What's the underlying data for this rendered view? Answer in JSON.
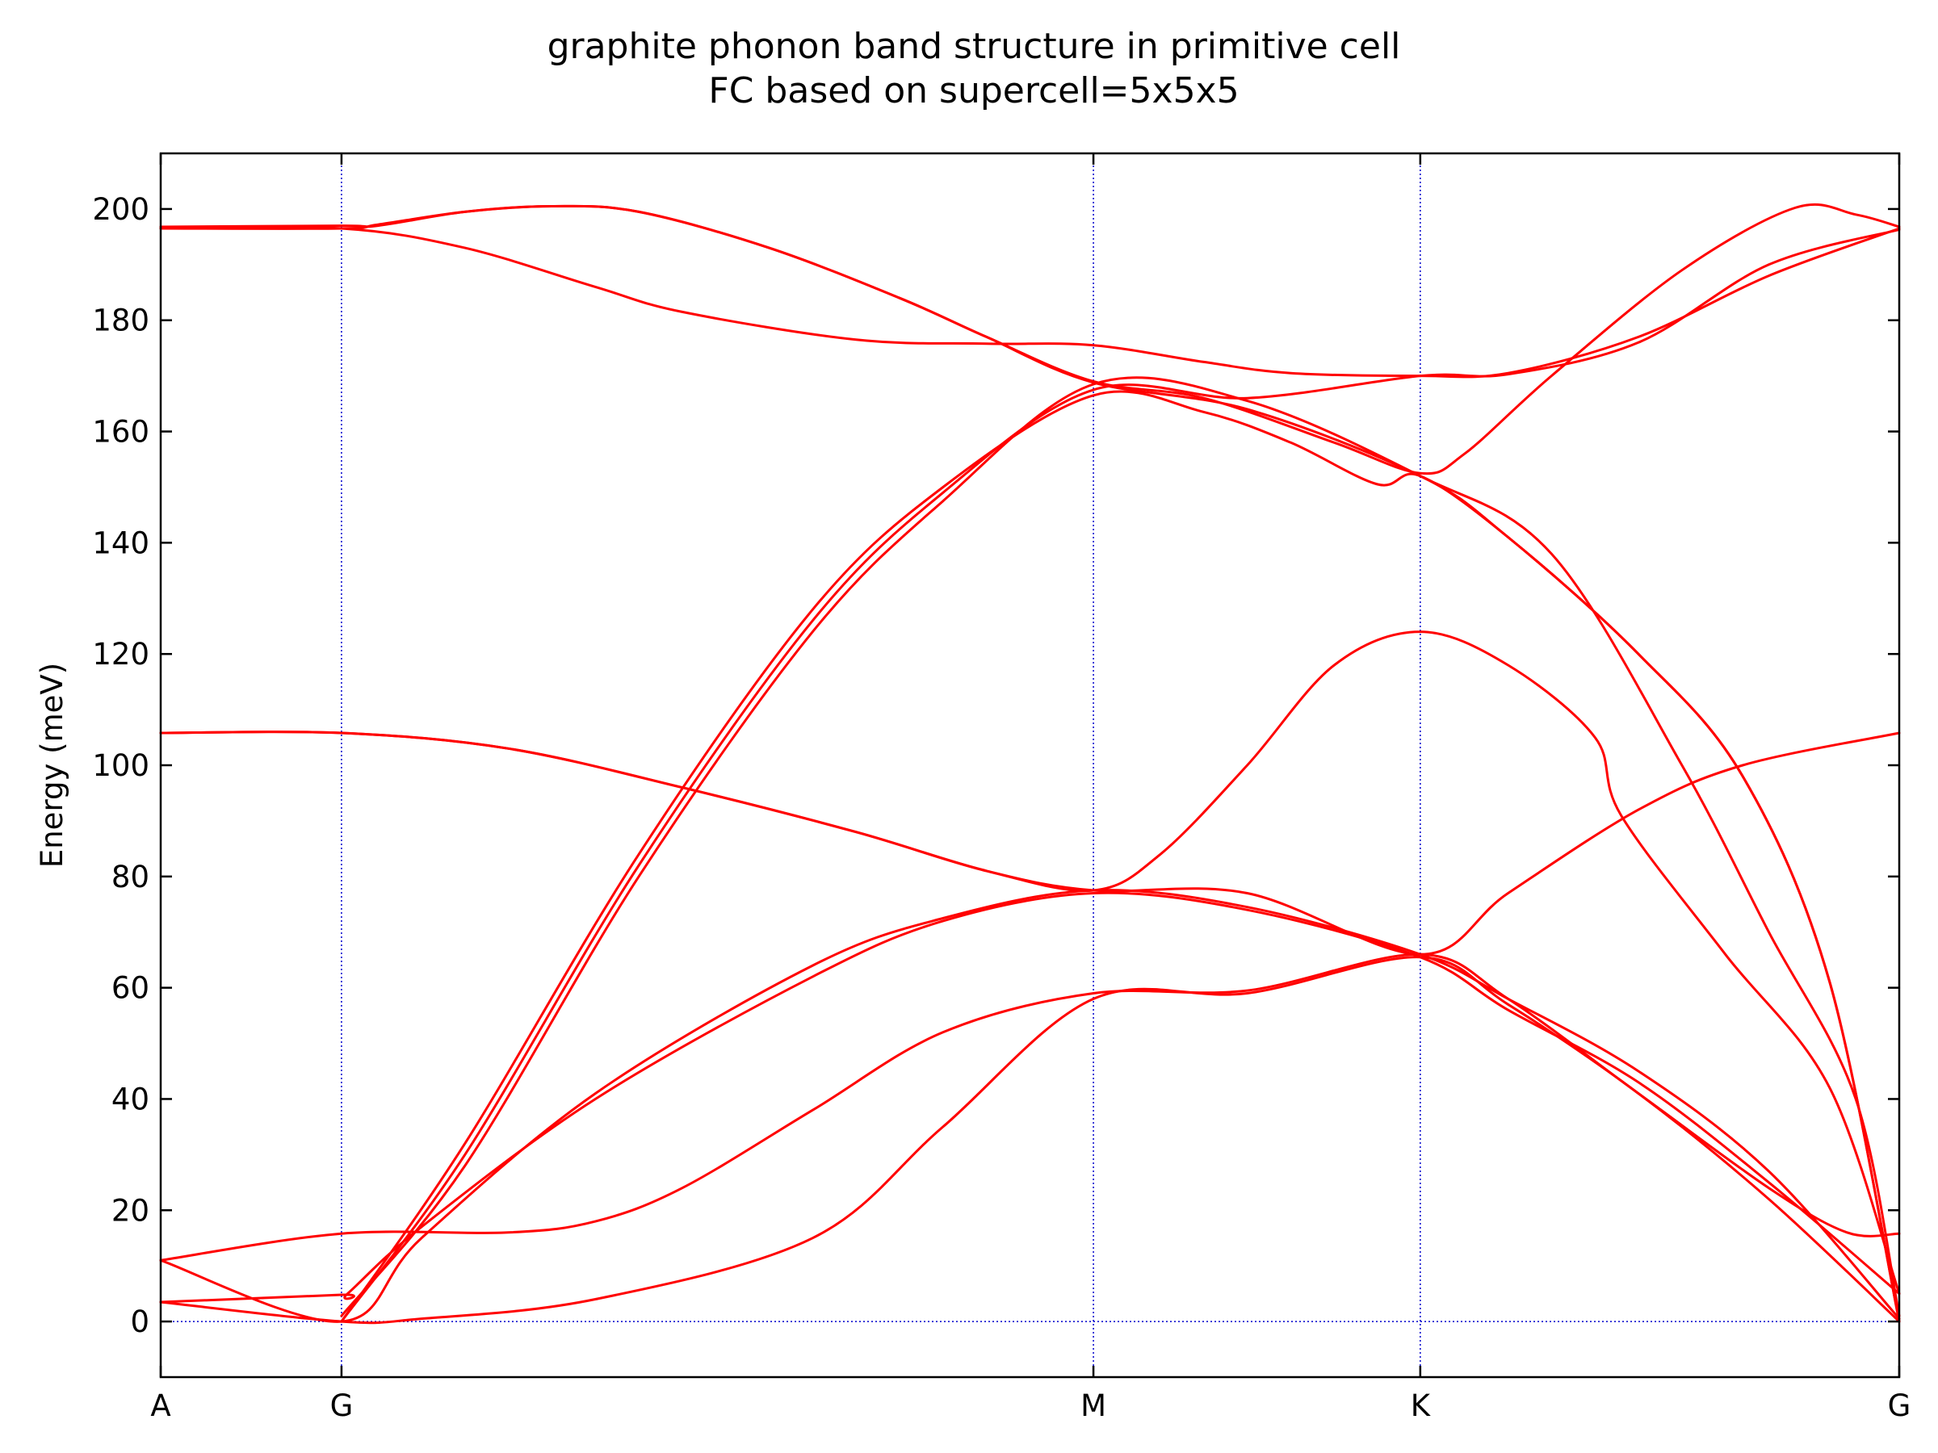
{
  "chart_data": {
    "type": "line",
    "title": "graphite phonon band structure in primitive cell",
    "subtitle": "FC based on supercell=5x5x5",
    "xlabel": "",
    "ylabel": "Energy (meV)",
    "ylim": [
      -10,
      210
    ],
    "yticks": [
      0,
      20,
      40,
      60,
      80,
      100,
      120,
      140,
      160,
      180,
      200
    ],
    "grid": "dotted vertical lines at high-symmetry points, dotted horizontal line at 0",
    "line_color": "#ff0000",
    "grid_color": "#0000cc",
    "x_high_symmetry": [
      {
        "label": "A",
        "x": 0.0
      },
      {
        "label": "G",
        "x": 0.208
      },
      {
        "label": "M",
        "x": 1.073
      },
      {
        "label": "K",
        "x": 1.449
      },
      {
        "label": "G",
        "x": 2.0
      }
    ],
    "series": [
      {
        "values": [
          [
            0.0,
            3.5
          ],
          [
            0.208,
            0.0
          ],
          [
            0.3,
            0.5
          ],
          [
            0.5,
            4.0
          ],
          [
            0.75,
            15.0
          ],
          [
            0.9,
            35.0
          ],
          [
            1.073,
            58.0
          ],
          [
            1.25,
            59.0
          ],
          [
            1.449,
            65.5
          ],
          [
            1.55,
            57.0
          ],
          [
            1.7,
            41.0
          ],
          [
            1.85,
            22.0
          ],
          [
            2.0,
            0.0
          ]
        ]
      },
      {
        "values": [
          [
            0.0,
            3.5
          ],
          [
            0.208,
            4.8
          ],
          [
            0.215,
            5.0
          ],
          [
            0.3,
            17.0
          ],
          [
            0.5,
            40.0
          ],
          [
            0.75,
            62.0
          ],
          [
            0.9,
            72.0
          ],
          [
            1.073,
            77.0
          ],
          [
            1.25,
            74.0
          ],
          [
            1.449,
            65.5
          ],
          [
            1.55,
            56.0
          ],
          [
            1.7,
            43.0
          ],
          [
            1.85,
            25.0
          ],
          [
            2.0,
            5.0
          ]
        ]
      },
      {
        "values": [
          [
            0.0,
            11.0
          ],
          [
            0.208,
            0.0
          ],
          [
            0.3,
            15.0
          ],
          [
            0.5,
            41.0
          ],
          [
            0.75,
            64.0
          ],
          [
            0.9,
            72.5
          ],
          [
            1.073,
            77.5
          ],
          [
            1.25,
            74.5
          ],
          [
            1.449,
            66.0
          ],
          [
            1.55,
            58.0
          ],
          [
            1.7,
            45.0
          ],
          [
            1.85,
            27.0
          ],
          [
            2.0,
            0.5
          ]
        ]
      },
      {
        "values": [
          [
            0.0,
            11.0
          ],
          [
            0.208,
            15.8
          ],
          [
            0.4,
            16.0
          ],
          [
            0.5,
            18.0
          ],
          [
            0.6,
            24.0
          ],
          [
            0.75,
            38.0
          ],
          [
            0.9,
            52.0
          ],
          [
            1.073,
            59.0
          ],
          [
            1.25,
            59.5
          ],
          [
            1.449,
            66.0
          ],
          [
            1.55,
            58.0
          ],
          [
            1.7,
            41.0
          ],
          [
            1.85,
            24.0
          ],
          [
            1.94,
            16.0
          ],
          [
            2.0,
            15.8
          ]
        ]
      },
      {
        "values": [
          [
            0.0,
            105.8
          ],
          [
            0.208,
            105.8
          ],
          [
            0.4,
            103.0
          ],
          [
            0.6,
            96.0
          ],
          [
            0.8,
            88.0
          ],
          [
            0.95,
            81.0
          ],
          [
            1.073,
            77.5
          ],
          [
            1.25,
            77.0
          ],
          [
            1.449,
            66.0
          ],
          [
            1.55,
            77.0
          ],
          [
            1.7,
            92.0
          ],
          [
            1.82,
            100.0
          ],
          [
            2.0,
            105.8
          ]
        ]
      },
      {
        "values": [
          [
            0.0,
            105.8
          ],
          [
            0.208,
            105.8
          ],
          [
            0.4,
            103.0
          ],
          [
            0.6,
            96.0
          ],
          [
            0.8,
            88.0
          ],
          [
            0.95,
            81.0
          ],
          [
            1.073,
            77.5
          ],
          [
            1.15,
            84.0
          ],
          [
            1.25,
            100.0
          ],
          [
            1.35,
            118.0
          ],
          [
            1.449,
            124.0
          ],
          [
            1.55,
            118.0
          ],
          [
            1.65,
            105.0
          ],
          [
            1.68,
            91.0
          ],
          [
            1.8,
            66.0
          ],
          [
            1.92,
            42.0
          ],
          [
            2.0,
            5.0
          ]
        ]
      },
      {
        "values": [
          [
            0.0,
            196.5
          ],
          [
            0.208,
            196.5
          ],
          [
            0.35,
            193.0
          ],
          [
            0.5,
            186.0
          ],
          [
            0.6,
            181.5
          ],
          [
            0.8,
            176.5
          ],
          [
            0.95,
            175.8
          ],
          [
            1.073,
            175.5
          ],
          [
            1.2,
            172.5
          ],
          [
            1.3,
            170.5
          ],
          [
            1.449,
            170.0
          ],
          [
            1.55,
            170.5
          ],
          [
            1.7,
            177.0
          ],
          [
            1.85,
            188.0
          ],
          [
            2.0,
            196.5
          ]
        ]
      },
      {
        "values": [
          [
            0.0,
            196.5
          ],
          [
            0.208,
            196.5
          ],
          [
            0.25,
            197.2
          ],
          [
            0.35,
            199.5
          ],
          [
            0.45,
            200.5
          ],
          [
            0.55,
            199.5
          ],
          [
            0.7,
            193.0
          ],
          [
            0.85,
            184.0
          ],
          [
            0.95,
            177.0
          ],
          [
            1.073,
            169.0
          ],
          [
            1.2,
            166.0
          ],
          [
            1.35,
            158.0
          ],
          [
            1.449,
            152.5
          ],
          [
            1.5,
            156.0
          ],
          [
            1.6,
            170.0
          ],
          [
            1.75,
            189.0
          ],
          [
            1.88,
            200.2
          ],
          [
            1.95,
            199.0
          ],
          [
            2.0,
            196.8
          ]
        ]
      },
      {
        "values": [
          [
            0.0,
            196.8
          ],
          [
            0.208,
            197.0
          ],
          [
            0.25,
            197.0
          ],
          [
            0.35,
            199.5
          ],
          [
            0.45,
            200.5
          ],
          [
            0.55,
            199.5
          ],
          [
            0.7,
            193.0
          ],
          [
            0.85,
            184.0
          ],
          [
            0.95,
            177.0
          ],
          [
            1.073,
            168.8
          ],
          [
            1.25,
            164.0
          ],
          [
            1.449,
            152.0
          ],
          [
            1.55,
            141.0
          ],
          [
            1.7,
            120.0
          ],
          [
            1.82,
            98.0
          ],
          [
            1.92,
            61.0
          ],
          [
            2.0,
            0.0
          ]
        ]
      },
      {
        "values": [
          [
            0.208,
            0.0
          ],
          [
            0.35,
            32.0
          ],
          [
            0.55,
            84.0
          ],
          [
            0.75,
            128.0
          ],
          [
            0.9,
            150.0
          ],
          [
            1.073,
            166.5
          ],
          [
            1.2,
            163.5
          ],
          [
            1.3,
            158.0
          ],
          [
            1.4,
            150.5
          ],
          [
            1.449,
            152.0
          ],
          [
            1.55,
            141.0
          ],
          [
            1.7,
            120.0
          ],
          [
            1.82,
            98.0
          ],
          [
            1.92,
            61.0
          ],
          [
            2.0,
            0.0
          ]
        ]
      },
      {
        "values": [
          [
            0.208,
            0.0
          ],
          [
            0.35,
            30.0
          ],
          [
            0.55,
            82.0
          ],
          [
            0.75,
            126.0
          ],
          [
            0.9,
            149.0
          ],
          [
            1.073,
            167.5
          ],
          [
            1.25,
            166.0
          ],
          [
            1.449,
            170.0
          ],
          [
            1.55,
            170.3
          ],
          [
            1.7,
            176.0
          ],
          [
            1.85,
            190.0
          ],
          [
            2.0,
            196.3
          ]
        ]
      },
      {
        "values": [
          [
            0.208,
            1.0
          ],
          [
            0.35,
            28.0
          ],
          [
            0.55,
            80.0
          ],
          [
            0.75,
            124.0
          ],
          [
            0.9,
            147.5
          ],
          [
            1.073,
            168.5
          ],
          [
            1.25,
            165.5
          ],
          [
            1.449,
            152.0
          ],
          [
            1.6,
            138.0
          ],
          [
            1.75,
            100.0
          ],
          [
            1.85,
            70.0
          ],
          [
            1.95,
            40.0
          ],
          [
            2.0,
            1.0
          ]
        ]
      }
    ]
  }
}
